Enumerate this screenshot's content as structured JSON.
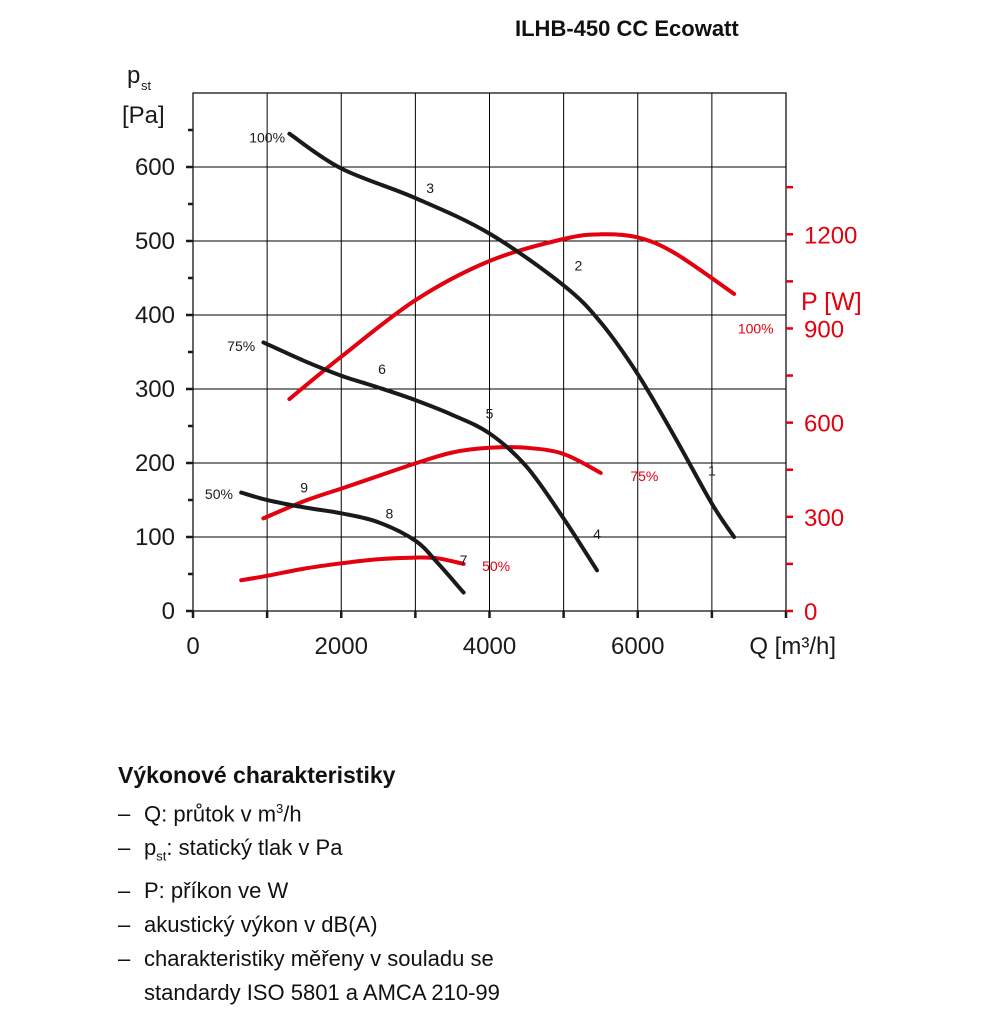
{
  "title": "ILHB-450 CC Ecowatt",
  "chart_data": {
    "type": "line",
    "title": "ILHB-450 CC Ecowatt",
    "xlabel": "Q [m³/h]",
    "ylabel_left_main": "p",
    "ylabel_left_sub": "st",
    "ylabel_left_unit": "[Pa]",
    "ylabel_right": "P [W]",
    "xlim": [
      0,
      8000
    ],
    "ylim_left": [
      0,
      700
    ],
    "ylim_right": [
      0,
      1650
    ],
    "x_ticks": [
      0,
      2000,
      4000,
      6000
    ],
    "x_tick_labels": [
      "0",
      "2000",
      "4000",
      "6000"
    ],
    "y_left_ticks": [
      0,
      100,
      200,
      300,
      400,
      500,
      600
    ],
    "y_left_tick_labels": [
      "0",
      "100",
      "200",
      "300",
      "400",
      "500",
      "600"
    ],
    "y_right_ticks": [
      0,
      300,
      600,
      900,
      1200
    ],
    "y_right_tick_labels": [
      "0",
      "300",
      "600",
      "900",
      "1200"
    ],
    "grid": true,
    "colors": {
      "pressure": "#1a1a1a",
      "power": "#e3000f",
      "grid": "#000000"
    },
    "pressure_series": [
      {
        "name": "100%",
        "x": [
          1300,
          2000,
          3000,
          4000,
          5000,
          5500,
          6000,
          6500,
          7000,
          7300
        ],
        "y": [
          645,
          598,
          558,
          510,
          440,
          390,
          320,
          235,
          145,
          100
        ]
      },
      {
        "name": "75%",
        "x": [
          950,
          1500,
          2000,
          2500,
          3000,
          3500,
          4000,
          4500,
          5000,
          5450
        ],
        "y": [
          363,
          338,
          318,
          302,
          285,
          265,
          240,
          195,
          125,
          55
        ]
      },
      {
        "name": "50%",
        "x": [
          650,
          1000,
          1500,
          2000,
          2500,
          3000,
          3300,
          3650
        ],
        "y": [
          160,
          150,
          140,
          132,
          120,
          95,
          65,
          25
        ]
      }
    ],
    "power_series": [
      {
        "name": "100%",
        "x": [
          1300,
          2000,
          3000,
          4000,
          5000,
          5500,
          6000,
          6500,
          7300
        ],
        "y": [
          675,
          810,
          990,
          1115,
          1185,
          1200,
          1190,
          1140,
          1010
        ]
      },
      {
        "name": "75%",
        "x": [
          950,
          1500,
          2000,
          2500,
          3000,
          3500,
          4000,
          4500,
          5000,
          5500
        ],
        "y": [
          295,
          350,
          390,
          430,
          470,
          505,
          520,
          520,
          500,
          440
        ]
      },
      {
        "name": "50%",
        "x": [
          650,
          1000,
          1500,
          2000,
          2500,
          3000,
          3300,
          3650
        ],
        "y": [
          98,
          112,
          135,
          152,
          165,
          170,
          168,
          150
        ]
      }
    ],
    "point_labels": [
      {
        "text": "1",
        "x": 7000,
        "y": 183
      },
      {
        "text": "2",
        "x": 5200,
        "y": 460
      },
      {
        "text": "3",
        "x": 3200,
        "y": 565
      },
      {
        "text": "4",
        "x": 5450,
        "y": 97
      },
      {
        "text": "5",
        "x": 4000,
        "y": 260
      },
      {
        "text": "6",
        "x": 2550,
        "y": 320
      },
      {
        "text": "7",
        "x": 3650,
        "y": 62
      },
      {
        "text": "8",
        "x": 2650,
        "y": 125
      },
      {
        "text": "9",
        "x": 1500,
        "y": 160
      }
    ],
    "curve_labels": [
      {
        "text": "100%",
        "series": "pressure",
        "x": 1000,
        "y": 640
      },
      {
        "text": "75%",
        "series": "pressure",
        "x": 650,
        "y": 358
      },
      {
        "text": "50%",
        "series": "pressure",
        "x": 350,
        "y": 158
      },
      {
        "text": "100%",
        "series": "power",
        "x": 7350,
        "y": 900
      },
      {
        "text": "75%",
        "series": "power",
        "x": 5900,
        "y": 430
      },
      {
        "text": "50%",
        "series": "power",
        "x": 3900,
        "y": 143
      }
    ]
  },
  "legend": {
    "heading": "Výkonové charakteristiky",
    "items": [
      {
        "dash": "–",
        "pre": "Q: průtok v m",
        "sup": "3",
        "post": "/h"
      },
      {
        "dash": "–",
        "pre": "p",
        "sub": "st",
        "post": ": statický tlak v Pa"
      },
      {
        "dash": "–",
        "pre": "P: příkon ve W"
      },
      {
        "dash": "–",
        "pre": "akustický výkon v dB(A)"
      },
      {
        "dash": "–",
        "pre": "charakteristiky měřeny v souladu se"
      }
    ],
    "continuation": "standardy ISO 5801 a AMCA 210-99"
  }
}
